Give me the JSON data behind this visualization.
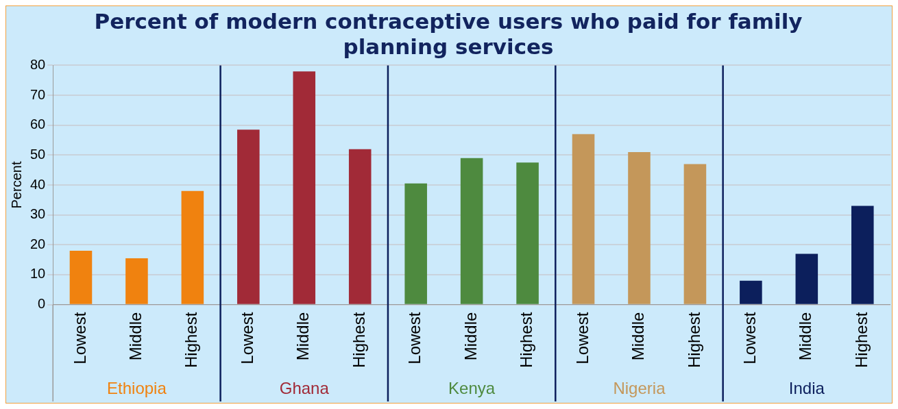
{
  "chart_data": {
    "type": "bar",
    "title": "Percent of modern contraceptive users who paid for family planning services",
    "ylabel": "Percent",
    "categories": [
      "Lowest",
      "Middle",
      "Highest",
      "Lowest",
      "Middle",
      "Highest",
      "Lowest",
      "Middle",
      "Highest",
      "Lowest",
      "Middle",
      "Highest",
      "Lowest",
      "Middle",
      "Highest"
    ],
    "series": [
      {
        "name": "Ethiopia",
        "color": "#f0820f",
        "values": [
          18,
          15.5,
          38,
          null,
          null,
          null,
          null,
          null,
          null,
          null,
          null,
          null,
          null,
          null,
          null
        ]
      },
      {
        "name": "Ghana",
        "color": "#a12a37",
        "values": [
          null,
          null,
          null,
          58.5,
          78,
          52,
          null,
          null,
          null,
          null,
          null,
          null,
          null,
          null,
          null
        ]
      },
      {
        "name": "Kenya",
        "color": "#4e8a3f",
        "values": [
          null,
          null,
          null,
          null,
          null,
          null,
          40.5,
          49,
          47.5,
          null,
          null,
          null,
          null,
          null,
          null
        ]
      },
      {
        "name": "Nigeria",
        "color": "#c4975a",
        "values": [
          null,
          null,
          null,
          null,
          null,
          null,
          null,
          null,
          null,
          57,
          51,
          47,
          null,
          null,
          null
        ]
      },
      {
        "name": "India",
        "color": "#0c1f5c",
        "values": [
          null,
          null,
          null,
          null,
          null,
          null,
          null,
          null,
          null,
          null,
          null,
          null,
          8,
          17,
          33
        ]
      }
    ],
    "ylim": [
      0,
      80
    ],
    "yticks": [
      0,
      10,
      20,
      30,
      40,
      50,
      60,
      70,
      80
    ],
    "grid": "y",
    "legend": false
  }
}
